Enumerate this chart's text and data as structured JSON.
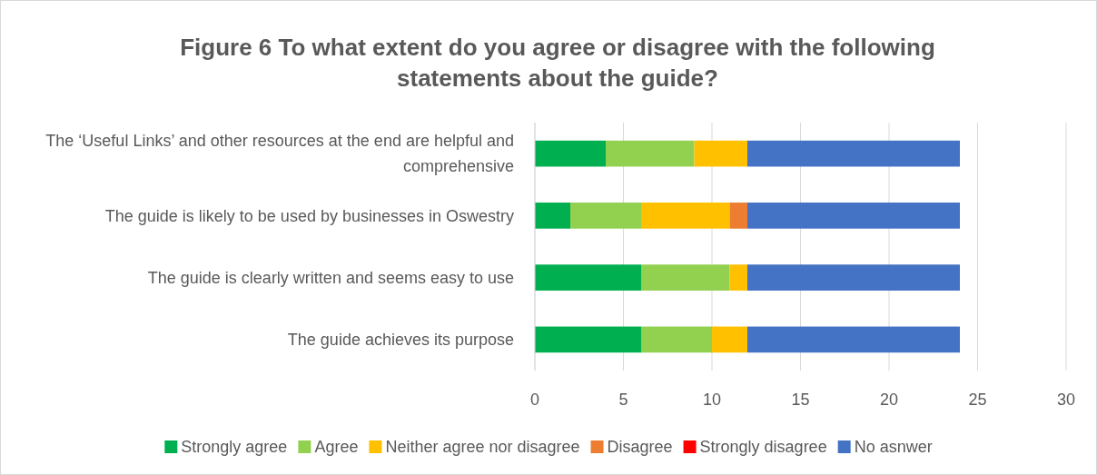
{
  "chart_data": {
    "type": "bar",
    "orientation": "horizontal",
    "stacked": true,
    "title": "Figure 6 To what extent do you agree or disagree with the following statements about the guide?",
    "categories": [
      "The ‘Useful Links’ and other resources at the end are helpful and comprehensive",
      "The guide is likely to be used by businesses in Oswestry",
      "The guide is clearly written and seems easy to use",
      "The guide achieves its purpose"
    ],
    "series": [
      {
        "name": "Strongly agree",
        "color": "#00b050",
        "values": [
          4,
          2,
          6,
          6
        ]
      },
      {
        "name": "Agree",
        "color": "#92d050",
        "values": [
          5,
          4,
          5,
          4
        ]
      },
      {
        "name": "Neither agree nor disagree",
        "color": "#ffc000",
        "values": [
          3,
          5,
          1,
          2
        ]
      },
      {
        "name": "Disagree",
        "color": "#ed7d31",
        "values": [
          0,
          1,
          0,
          0
        ]
      },
      {
        "name": "Strongly disagree",
        "color": "#ff0000",
        "values": [
          0,
          0,
          0,
          0
        ]
      },
      {
        "name": "No asnwer",
        "color": "#4472c4",
        "values": [
          12,
          12,
          12,
          12
        ]
      }
    ],
    "xlim": [
      0,
      30
    ],
    "xticks": [
      0,
      5,
      10,
      15,
      20,
      25,
      30
    ],
    "grid": "x",
    "legend": "bottom"
  }
}
